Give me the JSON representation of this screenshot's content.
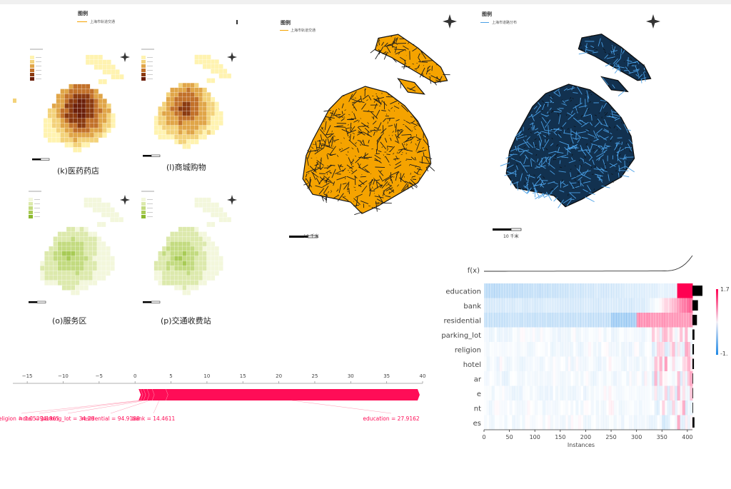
{
  "chart_data": [
    {
      "type": "heatmap",
      "title": "(k)医药药店",
      "colors": [
        "#fff3b0",
        "#f3d27a",
        "#e0a548",
        "#c2712a",
        "#8b3a10",
        "#6b1f0a"
      ]
    },
    {
      "type": "heatmap",
      "title": "(l)商城购物",
      "colors": [
        "#fff3b0",
        "#f3d27a",
        "#e0a548",
        "#c2712a",
        "#8b3a10",
        "#6b1f0a"
      ]
    },
    {
      "type": "heatmap",
      "title": "(o)服务区",
      "colors": [
        "#f3f7dc",
        "#dce9ac",
        "#c3db80",
        "#a8cb55",
        "#8cb930"
      ]
    },
    {
      "type": "heatmap",
      "title": "(p)交通收费站",
      "colors": [
        "#f3f7dc",
        "#dce9ac",
        "#c3db80",
        "#a8cb55",
        "#8cb930"
      ]
    },
    {
      "type": "map",
      "legend_title": "图例",
      "legend_label": "上海市轨道交通",
      "color": "#f5a300",
      "scale_label": "10 千米"
    },
    {
      "type": "map",
      "legend_title": "图例",
      "legend_label": "上海市道路分布",
      "color": "#1f6fb5",
      "scale_label": "10 千米"
    },
    {
      "type": "force",
      "xlim": [
        -17,
        40
      ],
      "ticks": [
        -15,
        -10,
        -5,
        0,
        5,
        10,
        15,
        20,
        25,
        30,
        35,
        40
      ],
      "base_value": 0.5,
      "output_value": 39.2,
      "segments": [
        {
          "name": "religion",
          "label": "religion = 0.05394",
          "value": 0.3
        },
        {
          "name": "hotel",
          "label": "hotel = 1.1865",
          "value": 0.4
        },
        {
          "name": "parking_lot",
          "label": "parking_lot = 34.29",
          "value": 0.5
        },
        {
          "name": "residential",
          "label": "residential = 94.9188",
          "value": 0.7
        },
        {
          "name": "bank",
          "label": "bank = 14.4611",
          "value": 1.9
        },
        {
          "name": "education",
          "label": "education = 27.9162",
          "value": 35.0
        }
      ],
      "positive_color": "#ff0d57"
    },
    {
      "type": "heatmap",
      "fx_label": "f(x)",
      "xlabel": "Instances",
      "xticks": [
        0,
        50,
        100,
        150,
        200,
        250,
        300,
        350,
        400
      ],
      "xlim": [
        0,
        410
      ],
      "features": [
        "education",
        "bank",
        "residential",
        "parking_lot",
        "religion",
        "hotel",
        "bar",
        "cafe",
        "restaurant",
        "shops"
      ],
      "feature_labels": [
        "education",
        "bank",
        "residential",
        "parking_lot",
        "religion",
        "hotel",
        "ar",
        "e",
        "nt",
        "es"
      ],
      "importance": [
        1.0,
        0.55,
        0.45,
        0.2,
        0.15,
        0.15,
        0.06,
        0.06,
        0.06,
        0.2
      ],
      "colorbar": {
        "max_label": "1.7",
        "min_label": "-1."
      },
      "colors": {
        "negative": "#1e88e5",
        "positive": "#ff0052"
      }
    }
  ]
}
